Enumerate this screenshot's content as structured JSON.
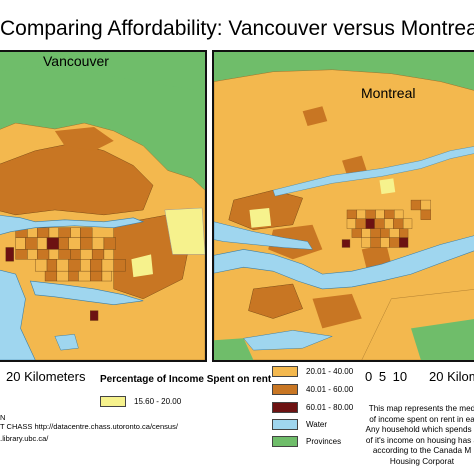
{
  "title": "Comparing Affordability: Vancouver versus Montreal",
  "maps": {
    "vancouver": {
      "label": "Vancouver"
    },
    "montreal": {
      "label": "Montreal"
    }
  },
  "scales": {
    "vancouver": "20 Kilometers",
    "montreal_numbers": "0 5 10",
    "montreal_word": "20 Kilom"
  },
  "legend": {
    "title": "Percentage of Income Spent on rent",
    "items": [
      {
        "label": "15.60 - 20.00",
        "color": "#f6f28d"
      },
      {
        "label": "20.01 - 40.00",
        "color": "#f3b84e"
      },
      {
        "label": "40.01 - 60.00",
        "color": "#c87623"
      },
      {
        "label": "60.01 - 80.00",
        "color": "#6d1212"
      },
      {
        "label": "Water",
        "color": "#9fd6ef"
      },
      {
        "label": "Provinces",
        "color": "#6fbd6a"
      }
    ]
  },
  "description": [
    "This map represents the med",
    "of income spent on rent in ea",
    "Any household which spends g",
    "of it's income on housing has a",
    "according to the Canada M",
    "Housing Corporat"
  ],
  "sources": [
    "N",
    "f T CHASS http://datacentre.chass.utoronto.ca/census/",
    "a.library.ubc.ca/"
  ]
}
